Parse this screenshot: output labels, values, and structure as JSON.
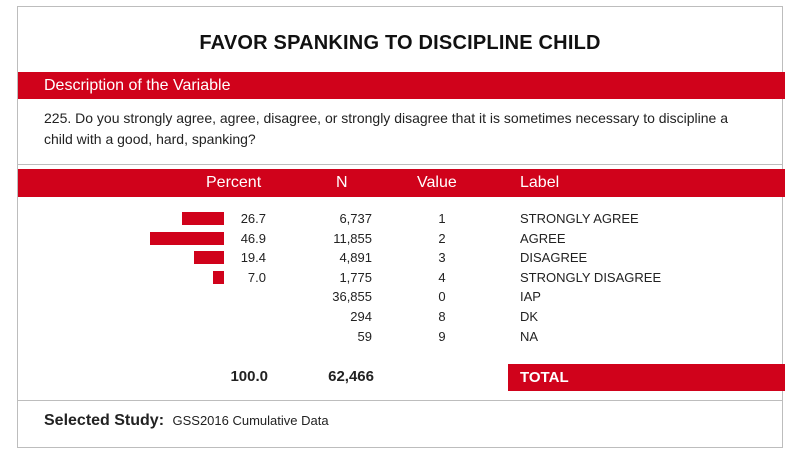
{
  "title": "FAVOR SPANKING TO DISCIPLINE CHILD",
  "description": {
    "heading": "Description of the Variable",
    "text": "225. Do you strongly agree, agree, disagree, or strongly disagree that it is sometimes necessary to discipline a child with a good, hard, spanking?"
  },
  "table": {
    "headers": {
      "percent": "Percent",
      "n": "N",
      "value": "Value",
      "label": "Label"
    },
    "rows": [
      {
        "percent": "26.7",
        "n": "6,737",
        "value": "1",
        "label": "STRONGLY AGREE"
      },
      {
        "percent": "46.9",
        "n": "11,855",
        "value": "2",
        "label": "AGREE"
      },
      {
        "percent": "19.4",
        "n": "4,891",
        "value": "3",
        "label": "DISAGREE"
      },
      {
        "percent": "7.0",
        "n": "1,775",
        "value": "4",
        "label": "STRONGLY DISAGREE"
      },
      {
        "percent": "",
        "n": "36,855",
        "value": "0",
        "label": "IAP"
      },
      {
        "percent": "",
        "n": "294",
        "value": "8",
        "label": "DK"
      },
      {
        "percent": "",
        "n": "59",
        "value": "9",
        "label": "NA"
      }
    ],
    "total": {
      "percent": "100.0",
      "n": "62,466",
      "label": "TOTAL"
    }
  },
  "study": {
    "key": "Selected Study:",
    "value": "GSS2016 Cumulative Data"
  },
  "colors": {
    "accent": "#d0021b"
  }
}
